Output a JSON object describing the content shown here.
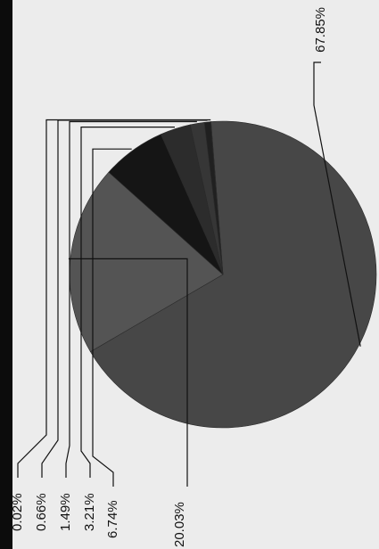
{
  "chart_data": {
    "type": "pie",
    "orientation": "rotated 90° counter-clockwise (labels read bottom-to-top)",
    "slices": [
      {
        "label": "67.85%",
        "value": 67.85,
        "color": "#474747"
      },
      {
        "label": "20.03%",
        "value": 20.03,
        "color": "#545454"
      },
      {
        "label": "6.74%",
        "value": 6.74,
        "color": "#151515"
      },
      {
        "label": "3.21%",
        "value": 3.21,
        "color": "#2c2c2c"
      },
      {
        "label": "1.49%",
        "value": 1.49,
        "color": "#363636"
      },
      {
        "label": "0.66%",
        "value": 0.66,
        "color": "#202020"
      },
      {
        "label": "0.02%",
        "value": 0.02,
        "color": "#666666"
      }
    ],
    "legend": "none"
  }
}
